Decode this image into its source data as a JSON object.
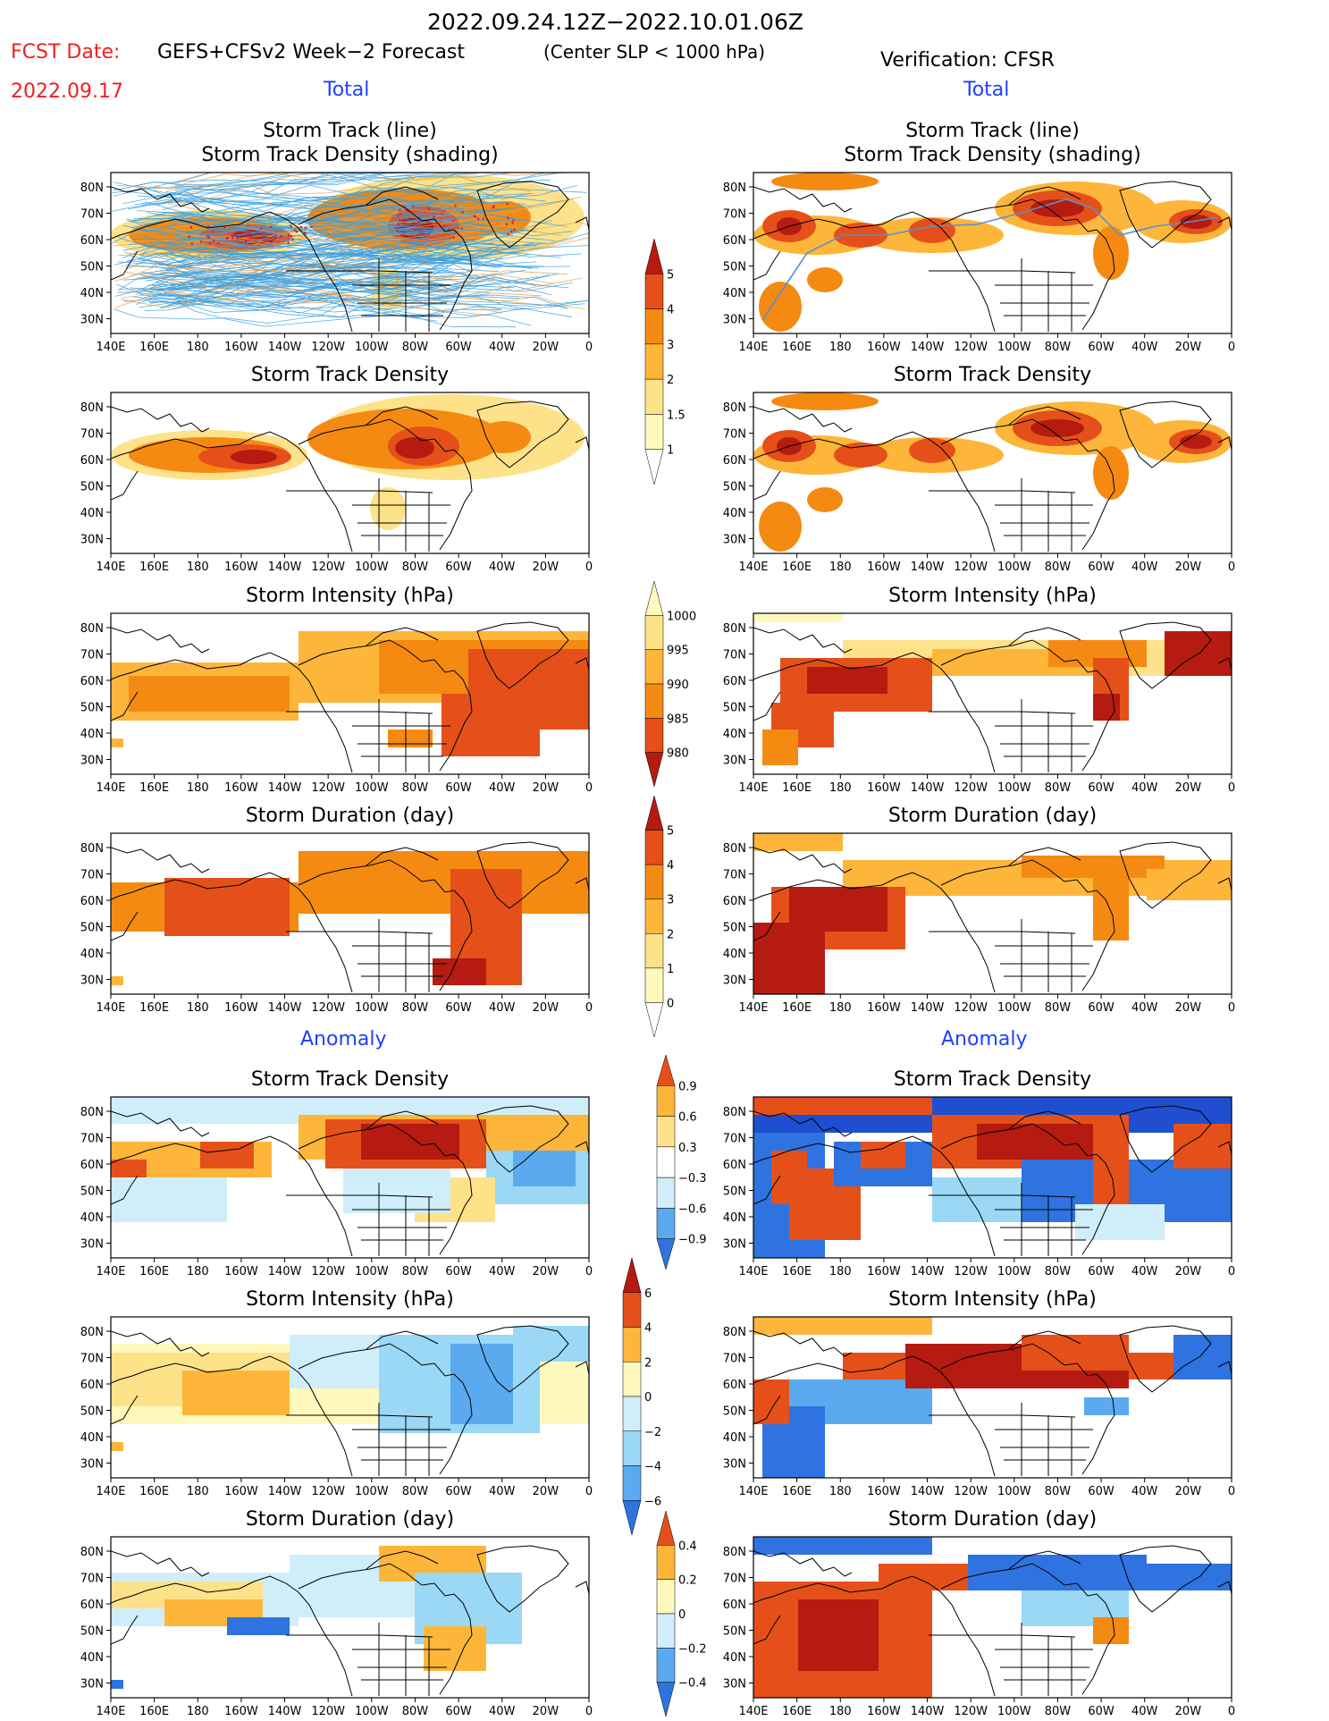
{
  "header": {
    "date_range": "2022.09.24.12Z−2022.10.01.06Z",
    "fcst_label": "FCST Date:",
    "fcst_date": "2022.09.17",
    "forecast_name": "GEFS+CFSv2 Week−2 Forecast",
    "criteria": "(Center SLP < 1000 hPa)",
    "verification": "Verification: CFSR"
  },
  "sections": {
    "total": "Total",
    "anomaly": "Anomaly"
  },
  "titles": {
    "track_line": "Storm Track (line)",
    "track_density_shading": "Storm Track Density (shading)",
    "track_density": "Storm Track Density",
    "intensity": "Storm Intensity (hPa)",
    "duration": "Storm Duration (day)"
  },
  "axes": {
    "lon_labels": [
      "140E",
      "160E",
      "180",
      "160W",
      "140W",
      "120W",
      "100W",
      "80W",
      "60W",
      "40W",
      "20W",
      "0"
    ],
    "lat_labels": [
      "80N",
      "70N",
      "60N",
      "50N",
      "40N",
      "30N"
    ]
  },
  "colorbars": {
    "density_total": [
      "5",
      "4",
      "3",
      "2",
      "1.5",
      "1"
    ],
    "intensity_total": [
      "1000",
      "995",
      "990",
      "985",
      "980"
    ],
    "duration_total": [
      "5",
      "4",
      "3",
      "2",
      "1",
      "0"
    ],
    "density_anom": [
      "0.9",
      "0.6",
      "0.3",
      "−0.3",
      "−0.6",
      "−0.9"
    ],
    "intensity_anom": [
      "6",
      "4",
      "2",
      "0",
      "−2",
      "−4",
      "−6"
    ],
    "duration_anom": [
      "0.4",
      "0.2",
      "0",
      "−0.2",
      "−0.4"
    ]
  },
  "colors": {
    "warm": [
      "#fff9bd",
      "#fde28a",
      "#fdb63a",
      "#f58a12",
      "#e5501a",
      "#b51b10"
    ],
    "cool": [
      "#cfeefa",
      "#9ad8f5",
      "#5baaf0",
      "#2f73e0",
      "#1f4fd0"
    ],
    "title_blue": "#2040ff",
    "fcst_red": "#ee2020"
  }
}
